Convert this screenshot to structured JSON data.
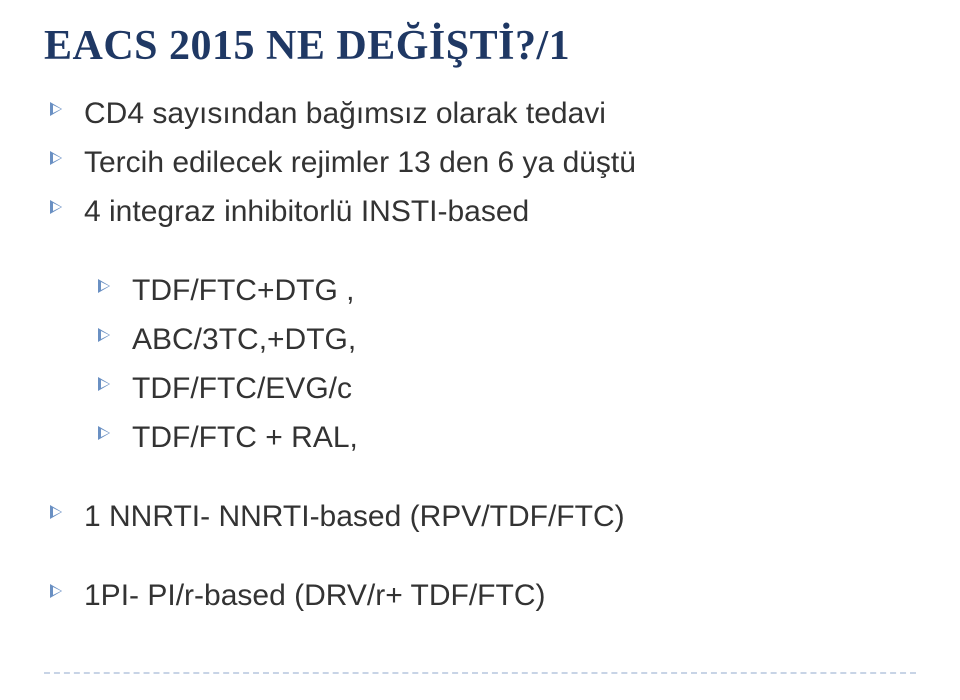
{
  "title": "EACS 2015  NE DEĞİŞTİ?/1",
  "level1_a": [
    "CD4 sayısından bağımsız olarak tedavi",
    "Tercih edilecek rejimler 13 den 6 ya düştü",
    "4 integraz inhibitorlü INSTI-based"
  ],
  "level2": [
    "TDF/FTC+DTG ,",
    "ABC/3TC,+DTG,",
    "TDF/FTC/EVG/c",
    "TDF/FTC + RAL,"
  ],
  "level1_b": [
    "1 NNRTI- NNRTI-based (RPV/TDF/FTC)"
  ],
  "level1_c": [
    "1PI- PI/r-based (DRV/r+ TDF/FTC)"
  ],
  "colors": {
    "title": "#1f3864",
    "text": "#333333",
    "bullet": "#6a90c3",
    "divider": "#c8d4e6",
    "background": "#ffffff"
  },
  "fonts": {
    "title_pt": 42,
    "body_pt": 30,
    "title_family": "Georgia serif bold",
    "body_family": "Arial sans-serif"
  }
}
